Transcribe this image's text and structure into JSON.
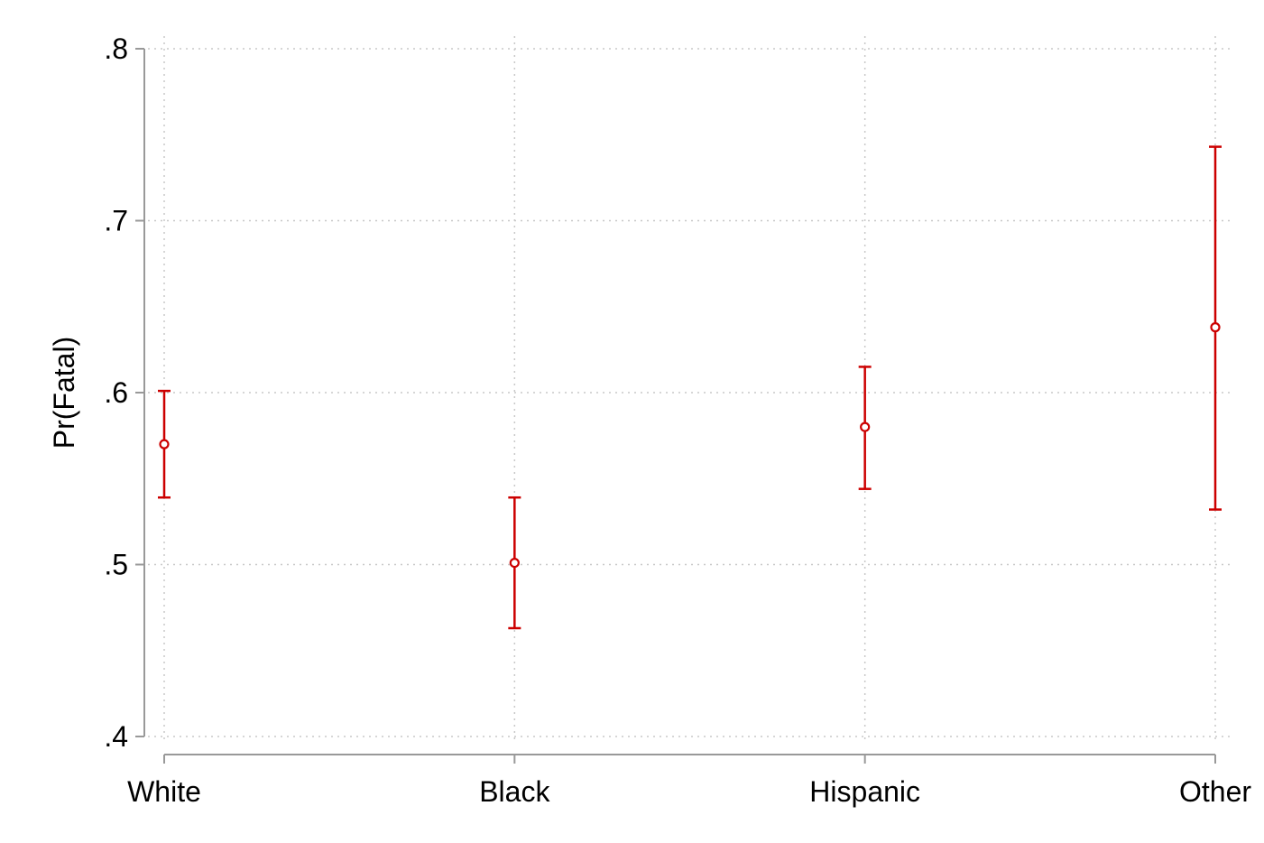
{
  "chart_data": {
    "type": "scatter",
    "title": "",
    "xlabel": "",
    "ylabel": "Pr(Fatal)",
    "categories": [
      "White",
      "Black",
      "Hispanic",
      "Other"
    ],
    "series": [
      {
        "estimate": [
          0.57,
          0.501,
          0.58,
          0.638
        ],
        "ci_lower": [
          0.539,
          0.463,
          0.544,
          0.532
        ],
        "ci_upper": [
          0.601,
          0.539,
          0.615,
          0.743
        ]
      }
    ],
    "ylim": [
      0.4,
      0.8
    ],
    "yticks": [
      0.4,
      0.5,
      0.6,
      0.7,
      0.8
    ],
    "ytick_labels": [
      ".4",
      ".5",
      ".6",
      ".7",
      ".8"
    ],
    "grid": true,
    "legend": "none",
    "colors": {
      "marker": "#cc0000",
      "axis": "#999999",
      "grid": "#c8c8c8"
    }
  }
}
